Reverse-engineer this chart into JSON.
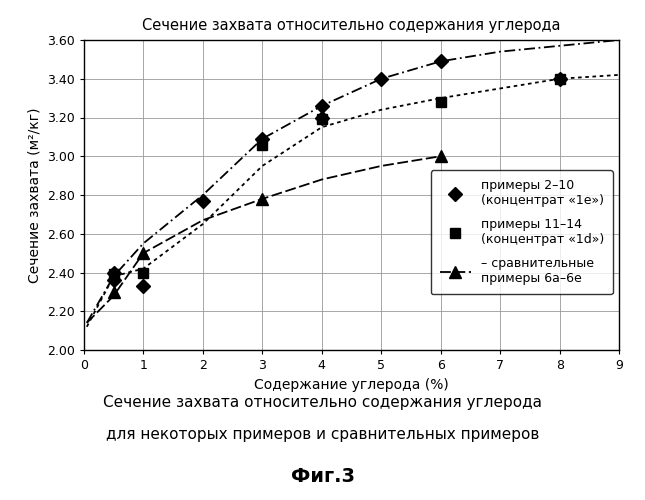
{
  "title": "Сечение захвата относительно содержания углерода",
  "xlabel": "Содержание углерода (%)",
  "ylabel": "Сечение захвата (м²/кг)",
  "xlim": [
    0,
    9
  ],
  "ylim": [
    2.0,
    3.6
  ],
  "xticks": [
    0,
    1,
    2,
    3,
    4,
    5,
    6,
    7,
    8,
    9
  ],
  "yticks": [
    2.0,
    2.2,
    2.4,
    2.6,
    2.8,
    3.0,
    3.2,
    3.4,
    3.6
  ],
  "series1_x": [
    0.5,
    0.5,
    1.0,
    2.0,
    3.0,
    4.0,
    4.0,
    5.0,
    6.0,
    8.0
  ],
  "series1_y": [
    2.36,
    2.4,
    2.33,
    2.77,
    3.09,
    3.26,
    3.2,
    3.4,
    3.49,
    3.4
  ],
  "series2_x": [
    0.5,
    1.0,
    3.0,
    4.0,
    6.0,
    8.0
  ],
  "series2_y": [
    2.39,
    2.4,
    3.06,
    3.19,
    3.28,
    3.4
  ],
  "series3_x": [
    0.5,
    1.0,
    3.0,
    6.0
  ],
  "series3_y": [
    2.3,
    2.5,
    2.78,
    3.0
  ],
  "curve1_x": [
    0.05,
    0.5,
    1.0,
    2.0,
    3.0,
    4.0,
    5.0,
    6.0,
    7.0,
    8.0,
    9.0
  ],
  "curve1_y": [
    2.14,
    2.38,
    2.55,
    2.8,
    3.09,
    3.26,
    3.4,
    3.49,
    3.54,
    3.57,
    3.6
  ],
  "curve2_x": [
    0.05,
    0.5,
    1.0,
    2.0,
    3.0,
    4.0,
    5.0,
    6.0,
    7.0,
    8.0,
    9.0
  ],
  "curve2_y": [
    2.12,
    2.38,
    2.42,
    2.65,
    2.95,
    3.15,
    3.24,
    3.3,
    3.35,
    3.4,
    3.42
  ],
  "curve3_x": [
    0.05,
    0.5,
    1.0,
    2.0,
    3.0,
    4.0,
    5.0,
    6.0
  ],
  "curve3_y": [
    2.14,
    2.28,
    2.5,
    2.67,
    2.78,
    2.88,
    2.95,
    3.0
  ],
  "legend1": "примеры 2–10\n(концентрат «1е»)",
  "legend2": "примеры 11–14\n(концентрат «1d»)",
  "legend3": "– сравнительные\nпримеры 6а–6е",
  "caption1": "Сечение захвата относительно содержания углерода",
  "caption2": "для некоторых примеров и сравнительных примеров",
  "caption3": "Фиг.3",
  "bg_color": "#ffffff",
  "line_color": "#000000",
  "grid_color": "#999999"
}
